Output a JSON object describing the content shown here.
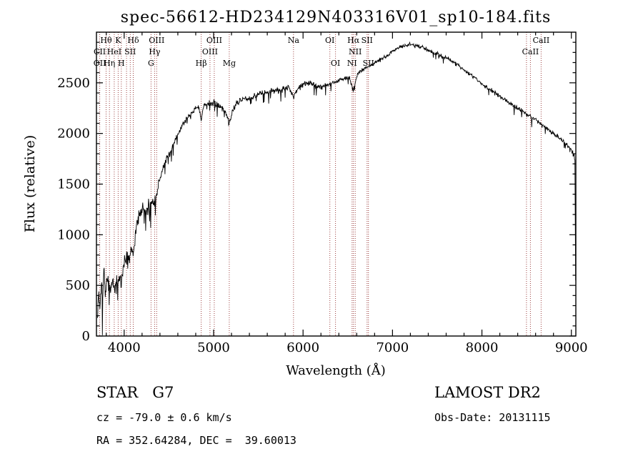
{
  "title": "spec-56612-HD234129N403316V01_sp10-184.fits",
  "axes": {
    "xlabel": "Wavelength (Å)",
    "ylabel": "Flux (relative)",
    "xlim": [
      3690,
      9050
    ],
    "ylim": [
      0,
      3000
    ],
    "x_ticks": [
      4000,
      5000,
      6000,
      7000,
      8000,
      9000
    ],
    "y_ticks": [
      0,
      500,
      1000,
      1500,
      2000,
      2500
    ],
    "x_minor_step": 200,
    "y_minor_step": 100
  },
  "annotations": {
    "class_label": "STAR   G7",
    "survey": "LAMOST DR2",
    "cz": "cz = -79.0 ± 0.6 km/s",
    "obs_date": "Obs-Date: 20131115",
    "coords": "RA = 352.64284, DEC =  39.60013"
  },
  "spectral_lines": {
    "color": "#9c4040",
    "wavelengths": [
      3727,
      3798,
      3835,
      3889,
      3933,
      3968,
      4026,
      4068,
      4101,
      4300,
      4340,
      4363,
      4861,
      4959,
      5007,
      5175,
      5893,
      6300,
      6363,
      6548,
      6563,
      6583,
      6716,
      6731,
      8498,
      8542,
      8662
    ],
    "labels": [
      {
        "text": "Hθ",
        "wavelength": 3798,
        "row": 0
      },
      {
        "text": "K",
        "wavelength": 3933,
        "row": 0
      },
      {
        "text": "Hδ",
        "wavelength": 4101,
        "row": 0
      },
      {
        "text": "OIII",
        "wavelength": 4363,
        "row": 0
      },
      {
        "text": "OIII",
        "wavelength": 5007,
        "row": 0
      },
      {
        "text": "Na",
        "wavelength": 5893,
        "row": 0
      },
      {
        "text": "OI",
        "wavelength": 6300,
        "row": 0
      },
      {
        "text": "Hα",
        "wavelength": 6563,
        "row": 0
      },
      {
        "text": "SII",
        "wavelength": 6716,
        "row": 0
      },
      {
        "text": "CaII",
        "wavelength": 8662,
        "row": 0
      },
      {
        "text": "CII",
        "wavelength": 3727,
        "row": 1
      },
      {
        "text": "HeI",
        "wavelength": 3889,
        "row": 1
      },
      {
        "text": "SII",
        "wavelength": 4068,
        "row": 1
      },
      {
        "text": "Hγ",
        "wavelength": 4340,
        "row": 1
      },
      {
        "text": "OIII",
        "wavelength": 4959,
        "row": 1
      },
      {
        "text": "NII",
        "wavelength": 6583,
        "row": 1
      },
      {
        "text": "CaII",
        "wavelength": 8542,
        "row": 1
      },
      {
        "text": "OII",
        "wavelength": 3727,
        "row": 2
      },
      {
        "text": "Hη",
        "wavelength": 3835,
        "row": 2
      },
      {
        "text": "H",
        "wavelength": 3968,
        "row": 2
      },
      {
        "text": "G",
        "wavelength": 4300,
        "row": 2
      },
      {
        "text": "Hβ",
        "wavelength": 4861,
        "row": 2
      },
      {
        "text": "Mg",
        "wavelength": 5175,
        "row": 2
      },
      {
        "text": "OI",
        "wavelength": 6363,
        "row": 2
      },
      {
        "text": "NI",
        "wavelength": 6548,
        "row": 2
      },
      {
        "text": "SII",
        "wavelength": 6731,
        "row": 2
      }
    ]
  },
  "chart_data": {
    "type": "line",
    "title": "spec-56612-HD234129N403316V01_sp10-184.fits",
    "xlabel": "Wavelength (Å)",
    "ylabel": "Flux (relative)",
    "xlim": [
      3690,
      9050
    ],
    "ylim": [
      0,
      3000
    ],
    "grid": false,
    "legend": "none",
    "series_name": "spectrum-flux",
    "line_color": "#000000",
    "points": [
      [
        3700,
        150
      ],
      [
        3715,
        430
      ],
      [
        3730,
        300
      ],
      [
        3745,
        520
      ],
      [
        3760,
        380
      ],
      [
        3775,
        640
      ],
      [
        3790,
        420
      ],
      [
        3805,
        560
      ],
      [
        3820,
        470
      ],
      [
        3835,
        520
      ],
      [
        3850,
        430
      ],
      [
        3870,
        560
      ],
      [
        3890,
        480
      ],
      [
        3910,
        560
      ],
      [
        3933,
        480
      ],
      [
        3950,
        590
      ],
      [
        3968,
        520
      ],
      [
        3985,
        650
      ],
      [
        4000,
        720
      ],
      [
        4030,
        820
      ],
      [
        4060,
        760
      ],
      [
        4080,
        880
      ],
      [
        4101,
        800
      ],
      [
        4130,
        1050
      ],
      [
        4160,
        1150
      ],
      [
        4200,
        1280
      ],
      [
        4240,
        1220
      ],
      [
        4280,
        1300
      ],
      [
        4320,
        1330
      ],
      [
        4360,
        1390
      ],
      [
        4400,
        1560
      ],
      [
        4450,
        1700
      ],
      [
        4500,
        1790
      ],
      [
        4550,
        1890
      ],
      [
        4600,
        2000
      ],
      [
        4650,
        2080
      ],
      [
        4700,
        2150
      ],
      [
        4750,
        2200
      ],
      [
        4800,
        2250
      ],
      [
        4830,
        2280
      ],
      [
        4861,
        2120
      ],
      [
        4890,
        2280
      ],
      [
        4930,
        2300
      ],
      [
        4970,
        2290
      ],
      [
        5007,
        2300
      ],
      [
        5050,
        2280
      ],
      [
        5100,
        2250
      ],
      [
        5140,
        2200
      ],
      [
        5175,
        2100
      ],
      [
        5210,
        2220
      ],
      [
        5260,
        2300
      ],
      [
        5320,
        2340
      ],
      [
        5380,
        2350
      ],
      [
        5440,
        2360
      ],
      [
        5500,
        2390
      ],
      [
        5560,
        2400
      ],
      [
        5620,
        2410
      ],
      [
        5680,
        2420
      ],
      [
        5740,
        2430
      ],
      [
        5800,
        2440
      ],
      [
        5850,
        2450
      ],
      [
        5893,
        2360
      ],
      [
        5940,
        2450
      ],
      [
        6000,
        2490
      ],
      [
        6060,
        2500
      ],
      [
        6120,
        2480
      ],
      [
        6180,
        2460
      ],
      [
        6240,
        2470
      ],
      [
        6300,
        2490
      ],
      [
        6360,
        2510
      ],
      [
        6420,
        2530
      ],
      [
        6480,
        2545
      ],
      [
        6520,
        2550
      ],
      [
        6563,
        2420
      ],
      [
        6610,
        2590
      ],
      [
        6670,
        2630
      ],
      [
        6730,
        2660
      ],
      [
        6790,
        2690
      ],
      [
        6850,
        2720
      ],
      [
        6910,
        2750
      ],
      [
        6970,
        2790
      ],
      [
        7030,
        2830
      ],
      [
        7090,
        2860
      ],
      [
        7150,
        2870
      ],
      [
        7210,
        2880
      ],
      [
        7270,
        2860
      ],
      [
        7330,
        2850
      ],
      [
        7390,
        2830
      ],
      [
        7450,
        2800
      ],
      [
        7510,
        2780
      ],
      [
        7570,
        2760
      ],
      [
        7630,
        2730
      ],
      [
        7690,
        2700
      ],
      [
        7750,
        2660
      ],
      [
        7810,
        2620
      ],
      [
        7870,
        2580
      ],
      [
        7930,
        2540
      ],
      [
        7990,
        2500
      ],
      [
        8050,
        2460
      ],
      [
        8110,
        2420
      ],
      [
        8170,
        2380
      ],
      [
        8230,
        2350
      ],
      [
        8290,
        2310
      ],
      [
        8350,
        2280
      ],
      [
        8410,
        2240
      ],
      [
        8470,
        2210
      ],
      [
        8530,
        2170
      ],
      [
        8590,
        2140
      ],
      [
        8650,
        2100
      ],
      [
        8710,
        2060
      ],
      [
        8770,
        2020
      ],
      [
        8830,
        1980
      ],
      [
        8890,
        1940
      ],
      [
        8950,
        1890
      ],
      [
        9000,
        1840
      ],
      [
        9025,
        1800
      ],
      [
        9040,
        1750
      ],
      [
        9048,
        550
      ]
    ],
    "noise": {
      "seed": 7,
      "step": 4,
      "segments": [
        {
          "up_to": 3900,
          "amplitude": 160
        },
        {
          "up_to": 4400,
          "amplitude": 110
        },
        {
          "up_to": 6200,
          "amplitude": 45
        },
        {
          "up_to": 9100,
          "amplitude": 30
        }
      ],
      "dip_probability": 0.04
    }
  }
}
